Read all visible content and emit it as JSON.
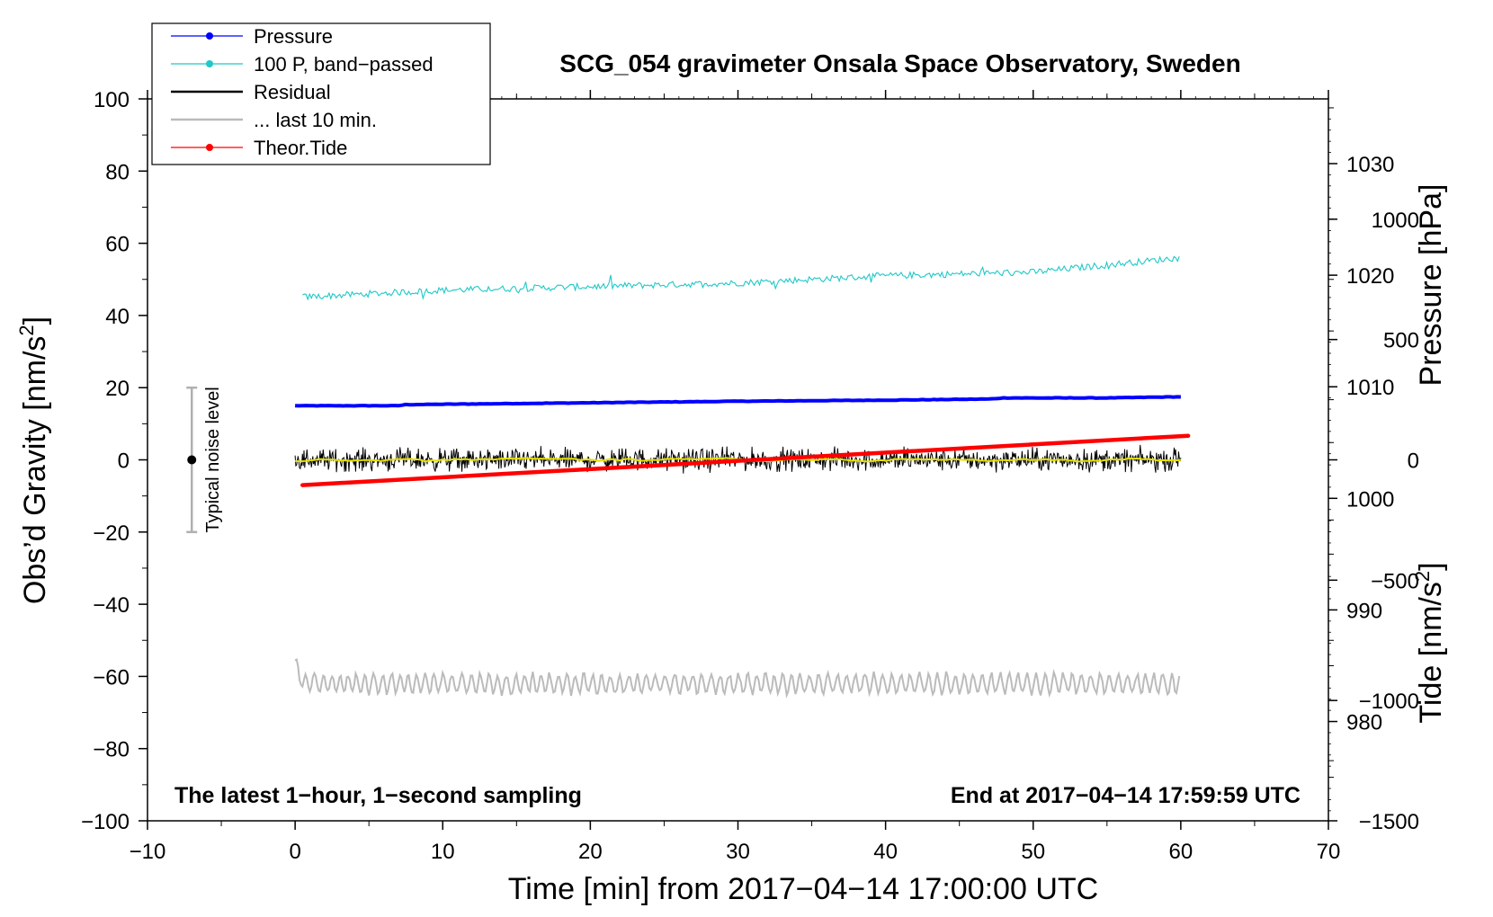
{
  "chart_data": {
    "type": "line",
    "title": "SCG_054 gravimeter Onsala Space Observatory, Sweden",
    "xlabel": "Time [min] from 2017−04−14 17:00:00 UTC",
    "ylabel_main": "Obs’d Gravity [nm/s",
    "ylabel_exp": "2",
    "ylabel_close": "]",
    "ylabel_pressure": "Pressure [hPa]",
    "ylabel_tide_main": "Tide [nm/s",
    "ylabel_tide_exp": "2",
    "ylabel_tide_close": "]",
    "xlim": [
      -10,
      70
    ],
    "ylim": [
      -100,
      100
    ],
    "pressure_lim": [
      971.1,
      1035.8
    ],
    "tide_lim": [
      -1500,
      1500
    ],
    "x_ticks": [
      -10,
      0,
      10,
      20,
      30,
      40,
      50,
      60,
      70
    ],
    "x_tick_labels": [
      "−10",
      "0",
      "10",
      "20",
      "30",
      "40",
      "50",
      "60",
      "70"
    ],
    "y_ticks": [
      -100,
      -80,
      -60,
      -40,
      -20,
      0,
      20,
      40,
      60,
      80,
      100
    ],
    "y_tick_labels": [
      "−100",
      "−80",
      "−60",
      "−40",
      "−20",
      "0",
      "20",
      "40",
      "60",
      "80",
      "100"
    ],
    "pressure_ticks": [
      980,
      990,
      1000,
      1010,
      1020,
      1030
    ],
    "pressure_tick_labels": [
      "980",
      "990",
      "1000",
      "1010",
      "1020",
      "1030"
    ],
    "tide_ticks": [
      -1500,
      -1000,
      -500,
      0,
      500,
      1000
    ],
    "tide_tick_labels": [
      "−1500",
      "−1000",
      "−500",
      "0",
      "500",
      "1000"
    ],
    "series": [
      {
        "name": "Pressure",
        "color": "#0000ff",
        "axis": "pressure",
        "x": [
          0,
          7,
          7.5,
          15,
          30,
          40,
          47,
          48,
          55,
          60
        ],
        "values": [
          1008.3,
          1008.3,
          1008.4,
          1008.5,
          1008.7,
          1008.8,
          1008.9,
          1009.0,
          1009.0,
          1009.1
        ]
      },
      {
        "name": "100 P, band−passed",
        "color": "#20c8c8",
        "axis": "gravity",
        "x": [
          0,
          10,
          20,
          30,
          40,
          50,
          60
        ],
        "values": [
          45,
          47,
          48,
          49,
          51,
          52,
          56
        ]
      },
      {
        "name": "Residual",
        "color": "#000000",
        "axis": "gravity",
        "x": [
          0,
          60
        ],
        "values": [
          0,
          0
        ]
      },
      {
        "name": "... last 10 min.",
        "color": "#bbbbbb",
        "axis": "gravity",
        "x": [
          0,
          60
        ],
        "values": [
          -62,
          -62
        ]
      },
      {
        "name": "Theor.Tide",
        "color": "#ff0000",
        "axis": "tide",
        "x": [
          0.5,
          60.5
        ],
        "values": [
          -105,
          100
        ]
      }
    ],
    "noise_bar": {
      "label": "Typical noise level",
      "x": -7,
      "center": 0,
      "low": -20,
      "high": 20
    },
    "annotation_left": "The latest 1−hour, 1−second sampling",
    "annotation_right": "End at 2017−04−14 17:59:59 UTC",
    "legend_placement": "top-left"
  }
}
